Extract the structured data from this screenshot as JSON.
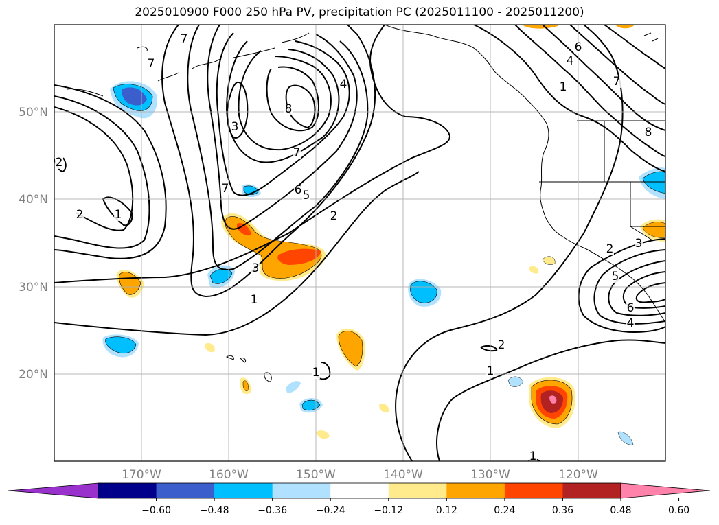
{
  "title": "2025010900 F000 250 hPa PV, precipitation PC (2025011100 - 2025011200)",
  "map": {
    "lon_range": [
      -180,
      -110
    ],
    "lat_range": [
      10,
      60
    ],
    "lat_ticks": [
      {
        "value": 20,
        "label": "20°N"
      },
      {
        "value": 30,
        "label": "30°N"
      },
      {
        "value": 40,
        "label": "40°N"
      },
      {
        "value": 50,
        "label": "50°N"
      }
    ],
    "lon_ticks": [
      {
        "value": -170,
        "label": "170°W"
      },
      {
        "value": -160,
        "label": "160°W"
      },
      {
        "value": -150,
        "label": "150°W"
      },
      {
        "value": -140,
        "label": "140°W"
      },
      {
        "value": -130,
        "label": "130°W"
      },
      {
        "value": -120,
        "label": "120°W"
      }
    ],
    "gridlines": true,
    "contour_labels": [
      "7",
      "7",
      "3",
      "8",
      "4",
      "7",
      "2",
      "1",
      "2",
      "7",
      "6",
      "5",
      "2",
      "3",
      "1",
      "2",
      "1",
      "1",
      "1",
      "6",
      "4",
      "1",
      "7",
      "8",
      "2",
      "3",
      "5",
      "6",
      "4"
    ]
  },
  "colorbar": {
    "extend": "both",
    "colors": [
      "#9932cc",
      "#00008b",
      "#3a5fcd",
      "#00bfff",
      "#b0e2ff",
      "#ffffff",
      "#ffeb8b",
      "#ffa500",
      "#ff4500",
      "#b22222",
      "#ff82ab"
    ],
    "tick_labels": [
      "−0.60",
      "−0.48",
      "−0.36",
      "−0.24",
      "−0.12",
      "0.12",
      "0.24",
      "0.36",
      "0.48",
      "0.60"
    ]
  }
}
